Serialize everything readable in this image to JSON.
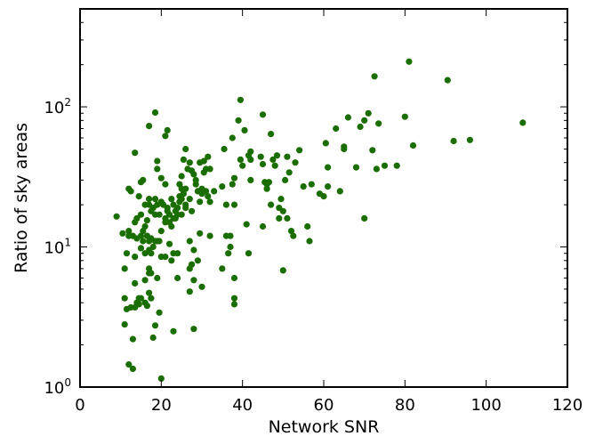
{
  "chart_data": {
    "type": "scatter",
    "title": "",
    "xlabel": "Network SNR",
    "ylabel": "Ratio of sky areas",
    "xlim": [
      0,
      120
    ],
    "ylim": [
      1,
      500
    ],
    "yscale": "log",
    "grid": false,
    "marker_color": "#1a6e00",
    "xticks": [
      "0",
      "20",
      "40",
      "60",
      "80",
      "100",
      "120"
    ],
    "yticks": [
      {
        "base": "10",
        "exp": "0"
      },
      {
        "base": "10",
        "exp": "1"
      },
      {
        "base": "10",
        "exp": "2"
      }
    ],
    "points": [
      [
        9,
        16.5
      ],
      [
        10.5,
        12.5
      ],
      [
        11,
        7
      ],
      [
        11,
        4.3
      ],
      [
        11,
        2.8
      ],
      [
        11.5,
        9
      ],
      [
        11.5,
        3.6
      ],
      [
        12,
        26
      ],
      [
        12,
        13
      ],
      [
        12,
        12
      ],
      [
        12,
        1.45
      ],
      [
        12.5,
        25
      ],
      [
        12.5,
        3.7
      ],
      [
        13,
        12
      ],
      [
        13,
        2.2
      ],
      [
        13,
        1.35
      ],
      [
        13.5,
        47
      ],
      [
        13.5,
        15
      ],
      [
        13.5,
        8.5
      ],
      [
        13.5,
        5.5
      ],
      [
        13.5,
        3.7
      ],
      [
        14,
        16
      ],
      [
        14,
        11.5
      ],
      [
        14,
        4
      ],
      [
        14.5,
        23
      ],
      [
        14.5,
        4.3
      ],
      [
        14.5,
        3.9
      ],
      [
        15,
        29
      ],
      [
        15,
        17
      ],
      [
        15,
        12
      ],
      [
        15,
        9.8
      ],
      [
        15,
        4.3
      ],
      [
        15.5,
        30
      ],
      [
        15.5,
        13
      ],
      [
        15.5,
        11
      ],
      [
        16,
        20
      ],
      [
        16,
        14
      ],
      [
        16,
        9
      ],
      [
        16,
        5.8
      ],
      [
        16,
        4
      ],
      [
        16.5,
        15.5
      ],
      [
        16.5,
        12
      ],
      [
        16.5,
        3.8
      ],
      [
        17,
        73
      ],
      [
        17,
        22
      ],
      [
        17,
        20
      ],
      [
        17,
        11
      ],
      [
        17,
        9.5
      ],
      [
        17,
        7
      ],
      [
        17,
        6.5
      ],
      [
        17,
        4.7
      ],
      [
        17.5,
        18
      ],
      [
        17.5,
        11.5
      ],
      [
        17.5,
        9
      ],
      [
        17.5,
        6.5
      ],
      [
        17.5,
        4.3
      ],
      [
        18,
        19
      ],
      [
        18,
        10
      ],
      [
        18,
        2.25
      ],
      [
        18.5,
        91
      ],
      [
        18.5,
        22
      ],
      [
        18.5,
        17
      ],
      [
        18.5,
        11
      ],
      [
        18.5,
        2.75
      ],
      [
        19,
        41
      ],
      [
        19,
        36
      ],
      [
        19,
        20
      ],
      [
        19,
        11
      ],
      [
        19,
        6
      ],
      [
        19.5,
        17
      ],
      [
        19.5,
        11
      ],
      [
        19.5,
        3.4
      ],
      [
        20,
        31
      ],
      [
        20,
        21
      ],
      [
        20,
        13
      ],
      [
        20,
        8.5
      ],
      [
        20,
        1.15
      ],
      [
        20.5,
        20
      ],
      [
        21,
        62
      ],
      [
        21,
        28
      ],
      [
        21,
        16
      ],
      [
        21,
        15
      ],
      [
        21,
        8.5
      ],
      [
        21.5,
        68
      ],
      [
        21.5,
        19
      ],
      [
        21.5,
        18
      ],
      [
        22,
        17
      ],
      [
        22,
        15
      ],
      [
        22,
        10.5
      ],
      [
        22.5,
        22
      ],
      [
        22.5,
        14
      ],
      [
        22.5,
        8
      ],
      [
        23,
        20
      ],
      [
        23,
        16
      ],
      [
        23,
        9
      ],
      [
        23,
        2.5
      ],
      [
        23.5,
        18
      ],
      [
        23.5,
        16
      ],
      [
        24,
        19
      ],
      [
        24,
        17
      ],
      [
        24,
        9
      ],
      [
        24,
        6
      ],
      [
        24.5,
        28
      ],
      [
        24.5,
        23
      ],
      [
        24.5,
        21
      ],
      [
        25,
        32
      ],
      [
        25,
        26
      ],
      [
        25,
        22
      ],
      [
        25,
        17
      ],
      [
        25.5,
        42
      ],
      [
        25.5,
        24
      ],
      [
        26,
        50
      ],
      [
        26,
        26
      ],
      [
        26,
        20
      ],
      [
        26,
        19
      ],
      [
        26.5,
        36
      ],
      [
        27,
        40
      ],
      [
        27,
        22
      ],
      [
        27,
        11
      ],
      [
        27,
        7
      ],
      [
        27,
        4.8
      ],
      [
        27.5,
        35
      ],
      [
        27.5,
        18
      ],
      [
        27.5,
        7.5
      ],
      [
        28,
        33
      ],
      [
        28,
        9.5
      ],
      [
        28,
        5.8
      ],
      [
        28,
        2.6
      ],
      [
        28.5,
        30
      ],
      [
        28.5,
        28
      ],
      [
        29,
        25
      ],
      [
        29,
        8
      ],
      [
        29.5,
        40
      ],
      [
        29.5,
        21
      ],
      [
        29.5,
        12.5
      ],
      [
        30,
        26
      ],
      [
        30,
        24
      ],
      [
        30,
        5.2
      ],
      [
        30.5,
        41
      ],
      [
        30.5,
        34
      ],
      [
        31,
        36
      ],
      [
        31,
        25
      ],
      [
        31.5,
        44
      ],
      [
        31.5,
        23
      ],
      [
        32,
        36
      ],
      [
        32,
        21
      ],
      [
        32,
        12
      ],
      [
        33,
        25
      ],
      [
        35,
        7
      ],
      [
        35,
        27
      ],
      [
        35.5,
        50
      ],
      [
        36,
        20
      ],
      [
        36,
        12
      ],
      [
        36.5,
        9
      ],
      [
        37,
        12
      ],
      [
        37,
        10
      ],
      [
        37.5,
        60
      ],
      [
        37.5,
        28
      ],
      [
        38,
        31
      ],
      [
        38,
        20
      ],
      [
        38,
        4.3
      ],
      [
        38,
        3.9
      ],
      [
        38,
        6
      ],
      [
        39,
        80
      ],
      [
        39.5,
        112
      ],
      [
        39.5,
        42
      ],
      [
        40,
        38
      ],
      [
        40.5,
        68
      ],
      [
        41,
        14.5
      ],
      [
        41.5,
        45
      ],
      [
        41.5,
        9
      ],
      [
        42,
        48
      ],
      [
        42,
        42
      ],
      [
        42,
        30
      ],
      [
        44.5,
        44
      ],
      [
        45,
        88
      ],
      [
        45,
        39
      ],
      [
        45,
        14
      ],
      [
        45.5,
        29
      ],
      [
        46,
        26
      ],
      [
        46,
        28
      ],
      [
        46.5,
        29
      ],
      [
        47,
        64
      ],
      [
        47,
        20
      ],
      [
        47.5,
        42
      ],
      [
        48,
        38
      ],
      [
        48.5,
        45
      ],
      [
        49,
        19
      ],
      [
        49,
        16
      ],
      [
        49.5,
        22
      ],
      [
        50,
        18
      ],
      [
        50,
        6.8
      ],
      [
        50.5,
        30
      ],
      [
        51,
        44
      ],
      [
        51,
        16
      ],
      [
        51.5,
        34
      ],
      [
        52,
        13
      ],
      [
        52.5,
        12
      ],
      [
        53,
        40
      ],
      [
        54,
        49
      ],
      [
        55,
        27
      ],
      [
        56,
        14
      ],
      [
        56.5,
        11
      ],
      [
        57,
        28
      ],
      [
        59,
        24
      ],
      [
        60,
        23
      ],
      [
        60.5,
        55
      ],
      [
        61,
        27
      ],
      [
        61,
        37
      ],
      [
        63,
        70
      ],
      [
        64,
        25
      ],
      [
        65,
        52
      ],
      [
        65,
        50
      ],
      [
        66,
        84
      ],
      [
        68,
        37
      ],
      [
        69,
        72
      ],
      [
        70,
        80
      ],
      [
        70,
        16
      ],
      [
        71,
        90
      ],
      [
        72,
        49
      ],
      [
        72.5,
        165
      ],
      [
        73,
        36
      ],
      [
        73.5,
        76
      ],
      [
        75,
        38
      ],
      [
        78,
        38
      ],
      [
        80,
        85
      ],
      [
        81,
        210
      ],
      [
        82,
        53
      ],
      [
        90.5,
        155
      ],
      [
        92,
        57
      ],
      [
        96,
        58
      ],
      [
        109,
        77
      ]
    ]
  }
}
